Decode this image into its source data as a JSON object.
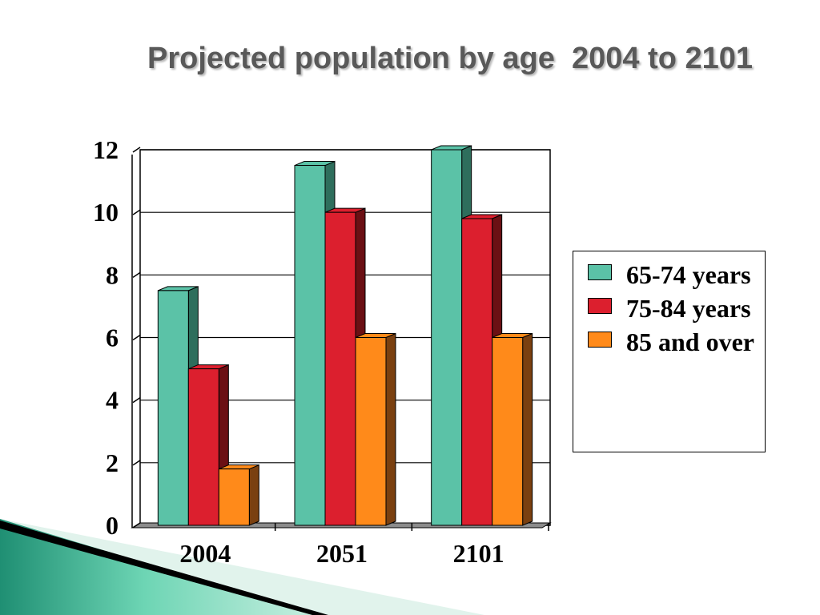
{
  "slide": {
    "title": "Projected population by age  2004 to 2101"
  },
  "chart_data": {
    "type": "bar",
    "title": "",
    "xlabel": "",
    "ylabel": "",
    "categories": [
      "2004",
      "2051",
      "2101"
    ],
    "series": [
      {
        "name": "65-74 years",
        "values": [
          7.5,
          11.5,
          12
        ],
        "color": "#5bc2a7",
        "side_color": "#2e6e5c"
      },
      {
        "name": "75-84 years",
        "values": [
          5,
          10,
          9.8
        ],
        "color": "#dc1f2e",
        "side_color": "#6b1014"
      },
      {
        "name": "85 and over",
        "values": [
          1.8,
          6,
          6
        ],
        "color": "#ff8a1a",
        "side_color": "#7a4010"
      }
    ],
    "ylim": [
      0,
      12
    ],
    "yticks": [
      "0",
      "2",
      "4",
      "6",
      "8",
      "10",
      "12"
    ],
    "grid": true,
    "legend_position": "right"
  }
}
